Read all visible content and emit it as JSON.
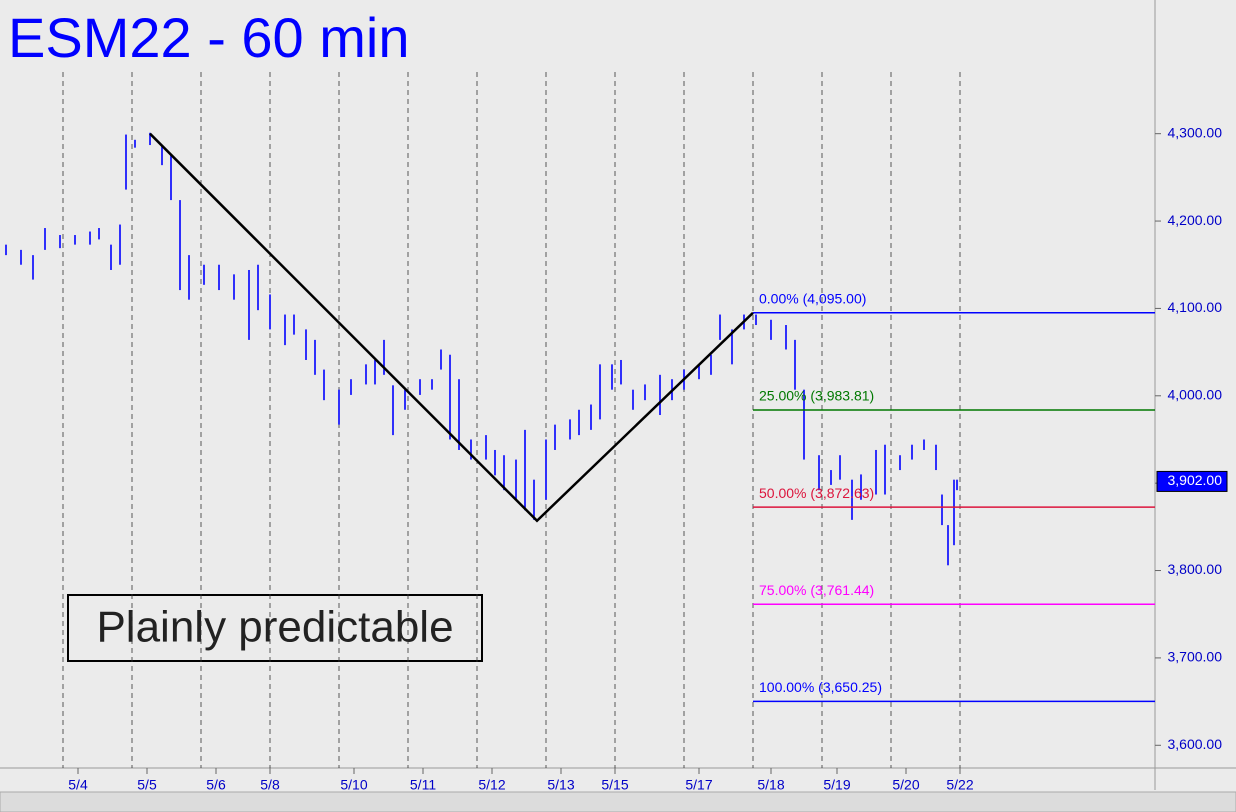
{
  "chart_data": {
    "type": "range_bars",
    "title": "ESM22 - 60 min",
    "annotation": "Plainly predictable",
    "color": "#0000ff",
    "xlim": [
      0,
      385
    ],
    "ylim": [
      3574,
      4453
    ],
    "xticks": [
      {
        "value": 26,
        "label": "5/4"
      },
      {
        "value": 49,
        "label": "5/5"
      },
      {
        "value": 72,
        "label": "5/6"
      },
      {
        "value": 90,
        "label": "5/8"
      },
      {
        "value": 118,
        "label": "5/10"
      },
      {
        "value": 141,
        "label": "5/11"
      },
      {
        "value": 164,
        "label": "5/12"
      },
      {
        "value": 187,
        "label": "5/13"
      },
      {
        "value": 205,
        "label": "5/15"
      },
      {
        "value": 233,
        "label": "5/17"
      },
      {
        "value": 257,
        "label": "5/18"
      },
      {
        "value": 279,
        "label": "5/19"
      },
      {
        "value": 302,
        "label": "5/20"
      },
      {
        "value": 320,
        "label": "5/22"
      }
    ],
    "day_separators": [
      21,
      44,
      67,
      90,
      113,
      136,
      159,
      182,
      205,
      228,
      251,
      274,
      297,
      320
    ],
    "yticks": [
      {
        "value": 3600,
        "label": "3,600.00"
      },
      {
        "value": 3700,
        "label": "3,700.00"
      },
      {
        "value": 3800,
        "label": "3,800.00"
      },
      {
        "value": 3900,
        "label": "3,900.00"
      },
      {
        "value": 4000,
        "label": "4,000.00"
      },
      {
        "value": 4100,
        "label": "4,100.00"
      },
      {
        "value": 4200,
        "label": "4,200.00"
      },
      {
        "value": 4300,
        "label": "4,300.00"
      }
    ],
    "bars": [
      {
        "x": 2,
        "high": 4173,
        "low": 4161
      },
      {
        "x": 7,
        "high": 4167,
        "low": 4150
      },
      {
        "x": 11,
        "high": 4161,
        "low": 4133
      },
      {
        "x": 15,
        "high": 4192,
        "low": 4167
      },
      {
        "x": 20,
        "high": 4184,
        "low": 4169
      },
      {
        "x": 25,
        "high": 4184,
        "low": 4173
      },
      {
        "x": 30,
        "high": 4188,
        "low": 4173
      },
      {
        "x": 33,
        "high": 4192,
        "low": 4179
      },
      {
        "x": 37,
        "high": 4173,
        "low": 4144
      },
      {
        "x": 40,
        "high": 4196,
        "low": 4150
      },
      {
        "x": 42,
        "high": 4299,
        "low": 4236
      },
      {
        "x": 45,
        "high": 4293,
        "low": 4284
      },
      {
        "x": 50,
        "high": 4301,
        "low": 4287
      },
      {
        "x": 54,
        "high": 4287,
        "low": 4264
      },
      {
        "x": 57,
        "high": 4276,
        "low": 4224
      },
      {
        "x": 60,
        "high": 4224,
        "low": 4121
      },
      {
        "x": 63,
        "high": 4161,
        "low": 4110
      },
      {
        "x": 68,
        "high": 4150,
        "low": 4127
      },
      {
        "x": 73,
        "high": 4150,
        "low": 4121
      },
      {
        "x": 78,
        "high": 4139,
        "low": 4110
      },
      {
        "x": 83,
        "high": 4144,
        "low": 4064
      },
      {
        "x": 86,
        "high": 4150,
        "low": 4098
      },
      {
        "x": 90,
        "high": 4116,
        "low": 4076
      },
      {
        "x": 95,
        "high": 4093,
        "low": 4058
      },
      {
        "x": 98,
        "high": 4093,
        "low": 4070
      },
      {
        "x": 102,
        "high": 4076,
        "low": 4041
      },
      {
        "x": 105,
        "high": 4064,
        "low": 4024
      },
      {
        "x": 108,
        "high": 4030,
        "low": 3995
      },
      {
        "x": 113,
        "high": 4007,
        "low": 3967
      },
      {
        "x": 117,
        "high": 4019,
        "low": 4001
      },
      {
        "x": 122,
        "high": 4036,
        "low": 4013
      },
      {
        "x": 125,
        "high": 4041,
        "low": 4013
      },
      {
        "x": 128,
        "high": 4064,
        "low": 4024
      },
      {
        "x": 131,
        "high": 4012,
        "low": 3955
      },
      {
        "x": 135,
        "high": 4007,
        "low": 3984
      },
      {
        "x": 140,
        "high": 4019,
        "low": 4001
      },
      {
        "x": 144,
        "high": 4019,
        "low": 4007
      },
      {
        "x": 147,
        "high": 4053,
        "low": 4030
      },
      {
        "x": 150,
        "high": 4047,
        "low": 3950
      },
      {
        "x": 153,
        "high": 4019,
        "low": 3938
      },
      {
        "x": 157,
        "high": 3950,
        "low": 3927
      },
      {
        "x": 162,
        "high": 3955,
        "low": 3927
      },
      {
        "x": 165,
        "high": 3938,
        "low": 3909
      },
      {
        "x": 168,
        "high": 3932,
        "low": 3892
      },
      {
        "x": 172,
        "high": 3927,
        "low": 3881
      },
      {
        "x": 175,
        "high": 3961,
        "low": 3869
      },
      {
        "x": 178,
        "high": 3904,
        "low": 3858
      },
      {
        "x": 182,
        "high": 3950,
        "low": 3881
      },
      {
        "x": 185,
        "high": 3967,
        "low": 3938
      },
      {
        "x": 190,
        "high": 3973,
        "low": 3950
      },
      {
        "x": 193,
        "high": 3984,
        "low": 3955
      },
      {
        "x": 197,
        "high": 3990,
        "low": 3961
      },
      {
        "x": 200,
        "high": 4036,
        "low": 3973
      },
      {
        "x": 204,
        "high": 4036,
        "low": 4007
      },
      {
        "x": 207,
        "high": 4041,
        "low": 4013
      },
      {
        "x": 211,
        "high": 4007,
        "low": 3984
      },
      {
        "x": 215,
        "high": 4013,
        "low": 3995
      },
      {
        "x": 220,
        "high": 4024,
        "low": 3978
      },
      {
        "x": 224,
        "high": 4019,
        "low": 3995
      },
      {
        "x": 228,
        "high": 4030,
        "low": 4007
      },
      {
        "x": 233,
        "high": 4036,
        "low": 4019
      },
      {
        "x": 237,
        "high": 4047,
        "low": 4024
      },
      {
        "x": 240,
        "high": 4093,
        "low": 4064
      },
      {
        "x": 244,
        "high": 4076,
        "low": 4036
      },
      {
        "x": 248,
        "high": 4093,
        "low": 4076
      },
      {
        "x": 252,
        "high": 4093,
        "low": 4081
      },
      {
        "x": 257,
        "high": 4087,
        "low": 4064
      },
      {
        "x": 262,
        "high": 4081,
        "low": 4053
      },
      {
        "x": 265,
        "high": 4064,
        "low": 4007
      },
      {
        "x": 268,
        "high": 4007,
        "low": 3927
      },
      {
        "x": 273,
        "high": 3932,
        "low": 3892
      },
      {
        "x": 277,
        "high": 3915,
        "low": 3898
      },
      {
        "x": 280,
        "high": 3932,
        "low": 3904
      },
      {
        "x": 284,
        "high": 3904,
        "low": 3858
      },
      {
        "x": 287,
        "high": 3910,
        "low": 3881
      },
      {
        "x": 292,
        "high": 3938,
        "low": 3887
      },
      {
        "x": 295,
        "high": 3944,
        "low": 3887
      },
      {
        "x": 300,
        "high": 3932,
        "low": 3915
      },
      {
        "x": 304,
        "high": 3944,
        "low": 3927
      },
      {
        "x": 308,
        "high": 3950,
        "low": 3938
      },
      {
        "x": 312,
        "high": 3944,
        "low": 3915
      },
      {
        "x": 314,
        "high": 3887,
        "low": 3852
      },
      {
        "x": 316,
        "high": 3852,
        "low": 3806
      },
      {
        "x": 318,
        "high": 3904,
        "low": 3829
      },
      {
        "x": 319,
        "high": 3904,
        "low": 3892
      }
    ],
    "trend_line": {
      "x": [
        50,
        179,
        251
      ],
      "y": [
        4300,
        3857,
        4095
      ]
    },
    "fib_start": 251,
    "fib_levels": [
      {
        "label": "0.00% (4,095.00)",
        "value": 4095,
        "color": "#0000ff"
      },
      {
        "label": "25.00% (3,983.81)",
        "value": 3983.81,
        "color": "#007800"
      },
      {
        "label": "50.00% (3,872.63)",
        "value": 3872.63,
        "color": "#dc143c"
      },
      {
        "label": "75.00% (3,761.44)",
        "value": 3761.44,
        "color": "#ff00ff"
      },
      {
        "label": "100.00% (3,650.25)",
        "value": 3650.25,
        "color": "#0000ff"
      }
    ],
    "last_price": {
      "value": 3902,
      "label": "3,902.00"
    }
  }
}
